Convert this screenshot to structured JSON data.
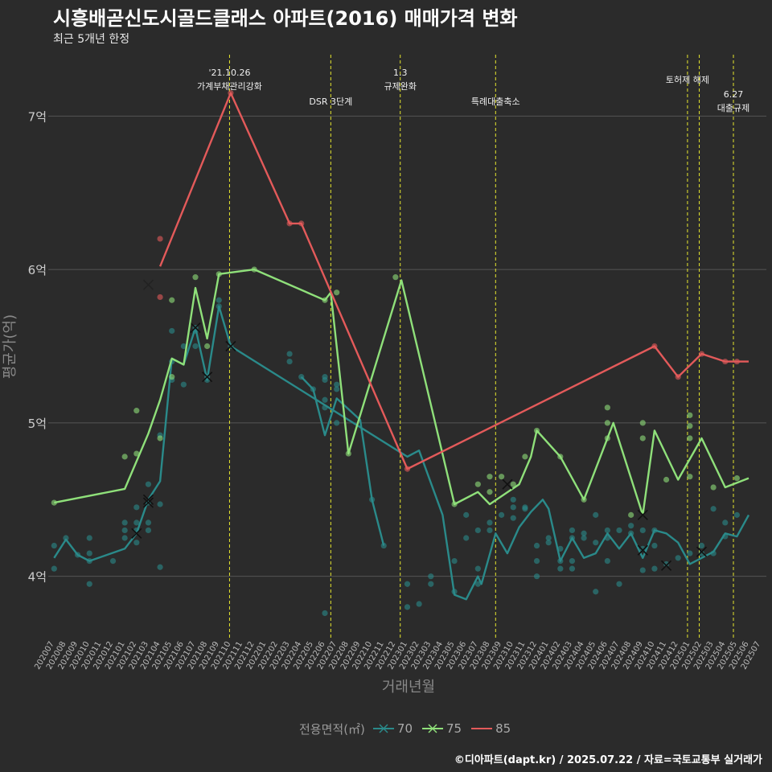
{
  "title": "시흥배곧신도시골드클래스 아파트(2016) 매매가격 변화",
  "subtitle": "최근 5개년 한정",
  "caption": "©디아파트(dapt.kr) / 2025.07.22 / 자료=국토교통부 실거래가",
  "colors": {
    "s70": "#2a8a8a",
    "s75": "#8fe07a",
    "s85": "#e35a5a",
    "event": "#e6e62e",
    "grid": "#555555",
    "bg": "#2b2b2b"
  },
  "chart_data": {
    "type": "line",
    "ylabel": "평균가(억)",
    "xlabel": "거래년월",
    "ylim": [
      3.6,
      7.4
    ],
    "yticks": [
      4,
      5,
      6,
      7
    ],
    "ytick_labels": [
      "4억",
      "5억",
      "6억",
      "7억"
    ],
    "grid": true,
    "legend_title": "전용면적(㎡)",
    "legend_position": "bottom",
    "x_labels": [
      "202007",
      "202008",
      "202009",
      "202010",
      "202011",
      "202012",
      "202101",
      "202102",
      "202103",
      "202104",
      "202105",
      "202106",
      "202107",
      "202108",
      "202109",
      "202110",
      "202111",
      "202112",
      "202201",
      "202202",
      "202203",
      "202204",
      "202205",
      "202206",
      "202207",
      "202208",
      "202209",
      "202210",
      "202211",
      "202212",
      "202301",
      "202302",
      "202303",
      "202304",
      "202305",
      "202306",
      "202307",
      "202308",
      "202309",
      "202310",
      "202311",
      "202312",
      "202401",
      "202402",
      "202403",
      "202404",
      "202405",
      "202406",
      "202407",
      "202408",
      "202409",
      "202410",
      "202411",
      "202412",
      "202501",
      "202502",
      "202503",
      "202504",
      "202505",
      "202506",
      "202507"
    ],
    "events": [
      {
        "x": 14.9,
        "lines": [
          "'21.10.26",
          "가계부채관리강화"
        ],
        "level": 1
      },
      {
        "x": 23.5,
        "lines": [
          "DSR 3단계"
        ],
        "level": 3
      },
      {
        "x": 29.4,
        "lines": [
          "1.3",
          "규제완화"
        ],
        "level": 1
      },
      {
        "x": 37.5,
        "lines": [
          "특례대출축소"
        ],
        "level": 3
      },
      {
        "x": 53.8,
        "lines": [
          "토허제 해제"
        ],
        "level": 2
      },
      {
        "x": 54.8,
        "lines": [],
        "level": 0
      },
      {
        "x": 57.7,
        "lines": [
          "6.27",
          "대출규제"
        ],
        "level": 4
      }
    ],
    "series": [
      {
        "name": "70",
        "color": "#2a8a8a",
        "line": [
          [
            0,
            4.12
          ],
          [
            1,
            4.24
          ],
          [
            2,
            4.14
          ],
          [
            3,
            4.1
          ],
          [
            6,
            4.18
          ],
          [
            7,
            4.28
          ],
          [
            8,
            4.5
          ],
          [
            9,
            4.62
          ],
          [
            10,
            5.42
          ],
          [
            11,
            5.38
          ],
          [
            12,
            5.62
          ],
          [
            13,
            5.28
          ],
          [
            14,
            5.76
          ],
          [
            15,
            5.5
          ],
          [
            30,
            4.78
          ],
          [
            31,
            4.82
          ],
          [
            33,
            4.4
          ],
          [
            34,
            3.88
          ],
          [
            35,
            3.85
          ],
          [
            36,
            4.0
          ],
          [
            36.3,
            3.95
          ],
          [
            37.5,
            4.28
          ],
          [
            38.5,
            4.15
          ],
          [
            39.5,
            4.32
          ],
          [
            40.5,
            4.42
          ],
          [
            41.5,
            4.5
          ],
          [
            42,
            4.44
          ],
          [
            43,
            4.1
          ],
          [
            44,
            4.25
          ],
          [
            45,
            4.12
          ],
          [
            46,
            4.15
          ],
          [
            47,
            4.28
          ],
          [
            48,
            4.18
          ],
          [
            49,
            4.28
          ],
          [
            50,
            4.12
          ],
          [
            51,
            4.3
          ],
          [
            52,
            4.28
          ],
          [
            53,
            4.22
          ],
          [
            54,
            4.08
          ],
          [
            55,
            4.12
          ],
          [
            56,
            4.16
          ],
          [
            57,
            4.28
          ],
          [
            58,
            4.26
          ],
          [
            59,
            4.4
          ]
        ],
        "line2": [
          [
            21,
            5.3
          ],
          [
            22,
            5.22
          ],
          [
            23,
            4.92
          ],
          [
            24,
            5.16
          ],
          [
            26,
            5.02
          ],
          [
            27,
            4.5
          ],
          [
            28,
            4.2
          ]
        ],
        "points": [
          [
            0,
            4.2
          ],
          [
            0,
            4.05
          ],
          [
            1,
            4.25
          ],
          [
            2,
            4.14
          ],
          [
            3,
            4.25
          ],
          [
            3,
            4.15
          ],
          [
            3,
            4.1
          ],
          [
            3,
            3.95
          ],
          [
            5,
            4.1
          ],
          [
            6,
            4.35
          ],
          [
            6,
            4.3
          ],
          [
            6,
            4.25
          ],
          [
            7,
            4.3
          ],
          [
            7,
            4.35
          ],
          [
            7,
            4.45
          ],
          [
            7,
            4.22
          ],
          [
            8,
            4.3
          ],
          [
            8,
            4.35
          ],
          [
            8,
            4.6
          ],
          [
            8,
            4.48
          ],
          [
            9,
            4.92
          ],
          [
            9,
            4.47
          ],
          [
            9,
            4.06
          ],
          [
            10,
            5.6
          ],
          [
            10,
            5.4
          ],
          [
            10,
            5.28
          ],
          [
            11,
            5.25
          ],
          [
            11,
            5.5
          ],
          [
            12,
            5.62
          ],
          [
            12,
            5.6
          ],
          [
            12,
            5.5
          ],
          [
            13,
            5.3
          ],
          [
            13,
            5.28
          ],
          [
            14,
            5.8
          ],
          [
            14,
            5.76
          ],
          [
            15,
            5.5
          ],
          [
            20,
            5.45
          ],
          [
            20,
            5.4
          ],
          [
            21,
            5.3
          ],
          [
            22,
            5.22
          ],
          [
            23,
            5.3
          ],
          [
            23,
            5.28
          ],
          [
            23,
            5.15
          ],
          [
            23,
            5.1
          ],
          [
            23,
            3.76
          ],
          [
            24,
            5.25
          ],
          [
            24,
            5.22
          ],
          [
            24,
            5.0
          ],
          [
            27,
            4.5
          ],
          [
            28,
            4.2
          ],
          [
            30,
            3.95
          ],
          [
            30,
            3.8
          ],
          [
            31,
            3.82
          ],
          [
            32,
            3.95
          ],
          [
            32,
            4.0
          ],
          [
            34,
            3.9
          ],
          [
            34,
            4.1
          ],
          [
            35,
            4.25
          ],
          [
            35,
            4.4
          ],
          [
            36,
            4.3
          ],
          [
            36,
            4.05
          ],
          [
            36,
            3.95
          ],
          [
            37,
            4.3
          ],
          [
            37,
            4.35
          ],
          [
            38,
            4.4
          ],
          [
            39,
            4.38
          ],
          [
            39,
            4.45
          ],
          [
            39,
            4.5
          ],
          [
            40,
            4.45
          ],
          [
            40,
            4.44
          ],
          [
            41,
            4.2
          ],
          [
            41,
            4.1
          ],
          [
            41,
            4.0
          ],
          [
            42,
            4.25
          ],
          [
            42,
            4.22
          ],
          [
            43,
            4.1
          ],
          [
            43,
            4.05
          ],
          [
            43,
            4.18
          ],
          [
            44,
            4.25
          ],
          [
            44,
            4.3
          ],
          [
            44,
            4.1
          ],
          [
            44,
            4.05
          ],
          [
            45,
            4.28
          ],
          [
            45,
            4.25
          ],
          [
            46,
            4.22
          ],
          [
            46,
            4.4
          ],
          [
            46,
            3.9
          ],
          [
            47,
            4.3
          ],
          [
            47,
            4.25
          ],
          [
            47,
            4.1
          ],
          [
            48,
            4.3
          ],
          [
            48,
            3.95
          ],
          [
            49,
            4.33
          ],
          [
            49,
            4.28
          ],
          [
            50,
            4.3
          ],
          [
            50,
            4.18
          ],
          [
            50,
            4.04
          ],
          [
            51,
            4.2
          ],
          [
            51,
            4.3
          ],
          [
            51,
            4.05
          ],
          [
            52,
            4.08
          ],
          [
            53,
            4.12
          ],
          [
            54,
            4.15
          ],
          [
            55,
            4.15
          ],
          [
            55,
            4.2
          ],
          [
            56,
            4.44
          ],
          [
            56,
            4.15
          ],
          [
            57,
            4.26
          ],
          [
            57,
            4.35
          ],
          [
            58,
            4.4
          ]
        ],
        "markers": [
          [
            7,
            4.28
          ],
          [
            8,
            4.5
          ],
          [
            12,
            5.62
          ],
          [
            13,
            5.3
          ],
          [
            15,
            5.5
          ],
          [
            50,
            4.17
          ],
          [
            52,
            4.07
          ],
          [
            55,
            4.16
          ]
        ]
      },
      {
        "name": "75",
        "color": "#8fe07a",
        "line": [
          [
            0,
            4.48
          ],
          [
            6,
            4.57
          ],
          [
            8,
            4.93
          ],
          [
            9,
            5.15
          ],
          [
            10,
            5.42
          ],
          [
            11,
            5.38
          ],
          [
            12,
            5.88
          ],
          [
            13,
            5.55
          ],
          [
            14,
            5.97
          ],
          [
            17,
            6.0
          ],
          [
            23,
            5.8
          ],
          [
            23.5,
            5.85
          ],
          [
            25,
            4.8
          ],
          [
            29.5,
            5.93
          ],
          [
            34,
            4.47
          ],
          [
            36,
            4.55
          ],
          [
            37,
            4.47
          ],
          [
            39.5,
            4.6
          ],
          [
            40.5,
            4.78
          ],
          [
            41,
            4.95
          ],
          [
            43,
            4.78
          ],
          [
            45,
            4.5
          ],
          [
            47.5,
            5.0
          ],
          [
            50,
            4.4
          ],
          [
            51,
            4.95
          ],
          [
            53,
            4.63
          ],
          [
            55,
            4.9
          ],
          [
            57,
            4.58
          ],
          [
            59,
            4.64
          ]
        ],
        "points": [
          [
            0,
            4.48
          ],
          [
            6,
            4.78
          ],
          [
            7,
            4.8
          ],
          [
            7,
            5.08
          ],
          [
            9,
            4.9
          ],
          [
            10,
            5.3
          ],
          [
            10,
            5.8
          ],
          [
            12,
            5.95
          ],
          [
            13,
            5.5
          ],
          [
            14,
            5.97
          ],
          [
            17,
            6.0
          ],
          [
            23,
            5.8
          ],
          [
            24,
            5.85
          ],
          [
            25,
            4.8
          ],
          [
            29,
            5.95
          ],
          [
            34,
            4.47
          ],
          [
            36,
            4.6
          ],
          [
            37,
            4.65
          ],
          [
            37,
            4.55
          ],
          [
            38,
            4.65
          ],
          [
            39,
            4.6
          ],
          [
            40,
            4.78
          ],
          [
            41,
            4.95
          ],
          [
            43,
            4.78
          ],
          [
            45,
            4.5
          ],
          [
            47,
            5.1
          ],
          [
            47,
            4.9
          ],
          [
            47,
            5.0
          ],
          [
            49,
            4.4
          ],
          [
            50,
            5.0
          ],
          [
            50,
            4.9
          ],
          [
            52,
            4.63
          ],
          [
            54,
            5.05
          ],
          [
            54,
            4.98
          ],
          [
            54,
            4.9
          ],
          [
            54,
            4.65
          ],
          [
            56,
            4.58
          ],
          [
            58,
            4.64
          ]
        ],
        "markers": [
          [
            8,
            4.48
          ],
          [
            38.5,
            4.6
          ],
          [
            50,
            4.4
          ]
        ]
      },
      {
        "name": "85",
        "color": "#e35a5a",
        "line": [
          [
            9,
            6.02
          ],
          [
            15,
            7.15
          ],
          [
            20,
            6.3
          ],
          [
            21,
            6.3
          ],
          [
            30,
            4.7
          ],
          [
            51,
            5.5
          ],
          [
            53,
            5.3
          ],
          [
            55,
            5.45
          ],
          [
            57,
            5.4
          ],
          [
            59,
            5.4
          ]
        ],
        "points": [
          [
            9,
            6.2
          ],
          [
            9,
            5.82
          ],
          [
            15,
            7.15
          ],
          [
            20,
            6.3
          ],
          [
            21,
            6.3
          ],
          [
            30,
            4.7
          ],
          [
            51,
            5.5
          ],
          [
            53,
            5.3
          ],
          [
            55,
            5.45
          ],
          [
            57,
            5.4
          ],
          [
            58,
            5.4
          ]
        ],
        "markers": [
          [
            8,
            5.9
          ]
        ]
      }
    ]
  }
}
